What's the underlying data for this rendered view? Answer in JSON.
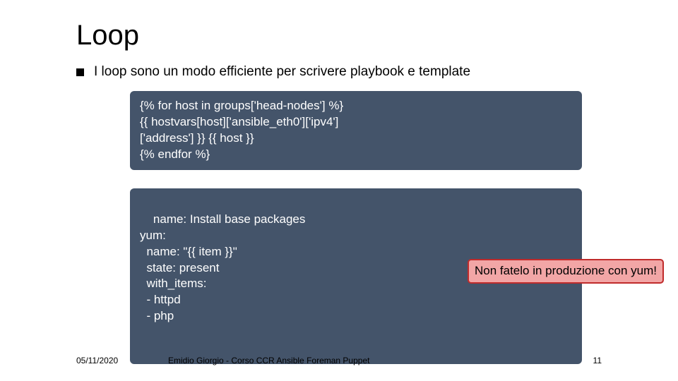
{
  "title": "Loop",
  "bullet": "I loop sono un modo efficiente per scrivere playbook e template",
  "code1": "{% for host in groups['head-nodes'] %}\n{{ hostvars[host]['ansible_eth0']['ipv4']\n['address'] }} {{ host }}\n{% endfor %}",
  "code2": "name: Install base packages\nyum:\n  name: \"{{ item }}\"\n  state: present\n  with_items:\n  - httpd\n  - php",
  "warning": "Non fatelo in produzione con yum!",
  "footer": {
    "date": "05/11/2020",
    "center": "Emidio Giorgio - Corso CCR Ansible Foreman Puppet",
    "page": "11"
  },
  "colors": {
    "code_bg": "#44546a",
    "code_text": "#ffffff",
    "warn_bg": "#f2a6a6",
    "warn_border": "#c02b2b",
    "page_bg": "#ffffff"
  }
}
